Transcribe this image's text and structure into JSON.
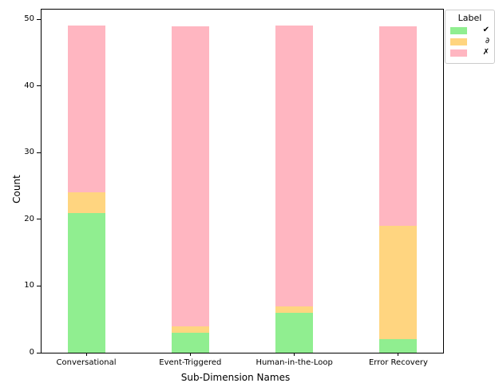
{
  "chart_data": {
    "type": "bar",
    "stacked": true,
    "title": "",
    "xlabel": "Sub-Dimension Names",
    "ylabel": "Count",
    "categories": [
      "Conversational",
      "Event-Triggered",
      "Human-in-the-Loop",
      "Error Recovery"
    ],
    "series": [
      {
        "name": "✔",
        "color": "#90EE90",
        "values": [
          21,
          3,
          6,
          2
        ]
      },
      {
        "name": "∂",
        "color": "#FFD580",
        "values": [
          3,
          1,
          1,
          17
        ]
      },
      {
        "name": "✗",
        "color": "#FFB6C1",
        "values": [
          25,
          45,
          42,
          30
        ]
      }
    ],
    "bar_totals": [
      49,
      49,
      49,
      49
    ],
    "ylim": [
      0,
      51.45
    ],
    "yticks": [
      0,
      10,
      20,
      30,
      40,
      50
    ],
    "grid": false,
    "legend": {
      "title": "Label",
      "entries": [
        "✔",
        "∂",
        "✗"
      ],
      "position": "upper-right-outside"
    }
  }
}
